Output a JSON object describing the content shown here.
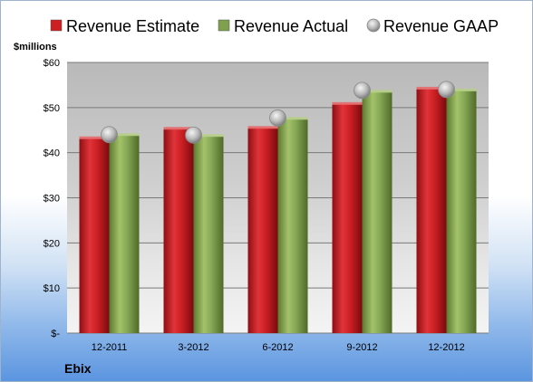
{
  "company": "Ebix",
  "chart_data": {
    "type": "bar",
    "ylabel": "$millions",
    "ylim": [
      0,
      60
    ],
    "yticks": [
      0,
      10,
      20,
      30,
      40,
      50,
      60
    ],
    "ytick_labels": [
      "$-",
      "$10",
      "$20",
      "$30",
      "$40",
      "$50",
      "$60"
    ],
    "categories": [
      "12-2011",
      "3-2012",
      "6-2012",
      "9-2012",
      "12-2012"
    ],
    "series": [
      {
        "name": "Revenue Estimate",
        "kind": "bar",
        "color": "#cc1f24",
        "values": [
          43.2,
          45.3,
          45.5,
          50.8,
          54.2
        ]
      },
      {
        "name": "Revenue Actual",
        "kind": "bar",
        "color": "#7fa04d",
        "values": [
          43.9,
          43.7,
          47.5,
          53.5,
          53.8
        ]
      },
      {
        "name": "Revenue GAAP",
        "kind": "marker",
        "color": "#b8b8b8",
        "values": [
          44.0,
          43.9,
          47.7,
          53.8,
          54.0
        ]
      }
    ],
    "legend_position": "top",
    "grid": true
  }
}
